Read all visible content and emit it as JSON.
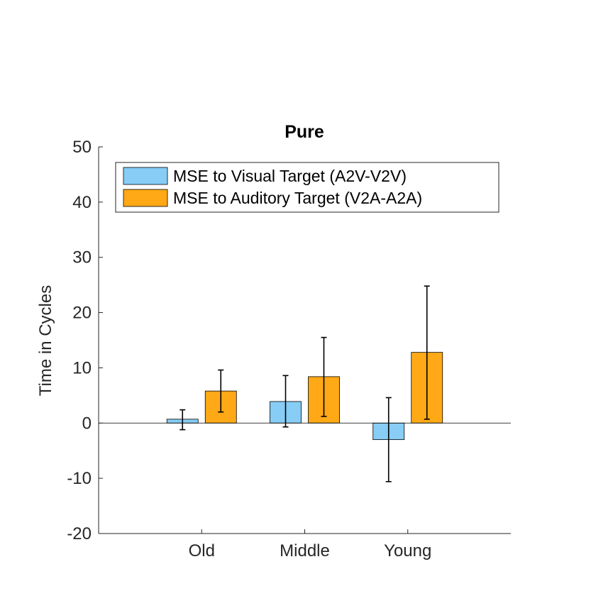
{
  "chart_data": {
    "type": "bar",
    "title": "Pure",
    "xlabel": "",
    "ylabel": "Time in Cycles",
    "categories": [
      "Old",
      "Middle",
      "Young"
    ],
    "ylim": [
      -20,
      50
    ],
    "yticks": [
      -20,
      -10,
      0,
      10,
      20,
      30,
      40,
      50
    ],
    "grid": false,
    "legend_position": "top-left",
    "series": [
      {
        "name": "MSE to Visual Target (A2V-V2V)",
        "color": "#87cdf5",
        "values": [
          0.7,
          3.9,
          -3.0
        ],
        "error_low": [
          -1.2,
          -0.7,
          -10.6
        ],
        "error_high": [
          2.4,
          8.6,
          4.6
        ]
      },
      {
        "name": "MSE to Auditory Target (V2A-A2A)",
        "color": "#ffa916",
        "values": [
          5.8,
          8.4,
          12.8
        ],
        "error_low": [
          2.0,
          1.2,
          0.7
        ],
        "error_high": [
          9.6,
          15.5,
          24.8
        ]
      }
    ]
  }
}
